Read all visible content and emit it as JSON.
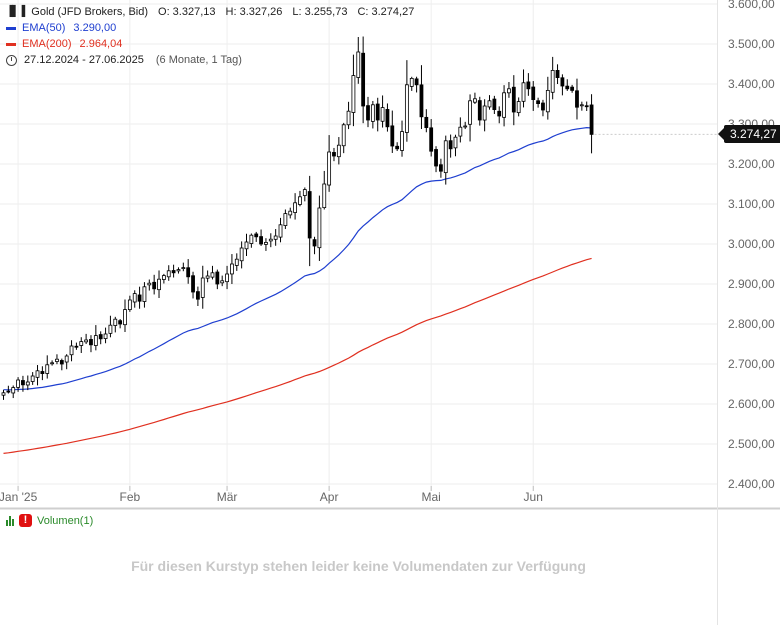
{
  "instrument": {
    "name": "Gold (JFD Brokers, Bid)",
    "open": "O: 3.327,13",
    "high": "H: 3.327,26",
    "low": "L: 3.255,73",
    "close": "C: 3.274,27"
  },
  "indicators": {
    "ema50": {
      "label": "EMA(50)",
      "value": "3.290,00",
      "color": "#1f3fd0"
    },
    "ema200": {
      "label": "EMA(200)",
      "value": "2.964,04",
      "color": "#e03020"
    }
  },
  "date_range": {
    "text": "27.12.2024 - 27.06.2025",
    "note": "(6 Monate, 1 Tag)"
  },
  "last_price": "3.274,27",
  "volume_panel": {
    "label": "Volumen(1)",
    "warning_icon": "exclamation-icon",
    "message": "Für diesen Kurstyp stehen leider keine Volumendaten zur Verfügung"
  },
  "chart_data": {
    "type": "candlestick",
    "x_tick_labels": [
      "Jan '25",
      "Feb",
      "Mär",
      "Apr",
      "Mai",
      "Jun"
    ],
    "y_tick_labels": [
      "3.600,00",
      "3.500,00",
      "3.400,00",
      "3.300,00",
      "3.200,00",
      "3.100,00",
      "3.000,00",
      "2.900,00",
      "2.800,00",
      "2.700,00",
      "2.600,00",
      "2.500,00",
      "2.400,00"
    ],
    "y_ticks": [
      3600,
      3500,
      3400,
      3300,
      3200,
      3100,
      3000,
      2900,
      2800,
      2700,
      2600,
      2500,
      2400
    ],
    "ylim": [
      2350,
      3620
    ],
    "x_tick_day_index": [
      3,
      26,
      46,
      67,
      88,
      109
    ],
    "grid": true,
    "colors": {
      "up": "#ffffff",
      "down": "#000000",
      "wick": "#000000",
      "ema50": "#1f3fd0",
      "ema200": "#e03020"
    },
    "close": [
      2628,
      2632,
      2641,
      2660,
      2648,
      2655,
      2670,
      2683,
      2676,
      2698,
      2703,
      2712,
      2700,
      2720,
      2745,
      2742,
      2756,
      2760,
      2748,
      2771,
      2763,
      2775,
      2797,
      2812,
      2800,
      2836,
      2860,
      2876,
      2857,
      2893,
      2902,
      2888,
      2912,
      2921,
      2933,
      2928,
      2936,
      2941,
      2918,
      2880,
      2862,
      2915,
      2920,
      2928,
      2900,
      2908,
      2925,
      2950,
      2962,
      2990,
      3005,
      3022,
      3018,
      3000,
      3004,
      3012,
      3020,
      3048,
      3076,
      3082,
      3103,
      3118,
      3136,
      3015,
      2995,
      3090,
      3150,
      3230,
      3220,
      3247,
      3298,
      3332,
      3421,
      3480,
      3345,
      3310,
      3348,
      3310,
      3341,
      3293,
      3245,
      3238,
      3281,
      3398,
      3414,
      3398,
      3318,
      3291,
      3232,
      3195,
      3182,
      3258,
      3238,
      3267,
      3292,
      3295,
      3358,
      3363,
      3310,
      3345,
      3358,
      3336,
      3320,
      3378,
      3388,
      3330,
      3356,
      3403,
      3388,
      3361,
      3351,
      3335,
      3384,
      3434,
      3416,
      3395,
      3388,
      3384,
      3342,
      3348,
      3345,
      3274
    ],
    "ema50_end": 3290.0,
    "ema200_end": 2964.04
  }
}
